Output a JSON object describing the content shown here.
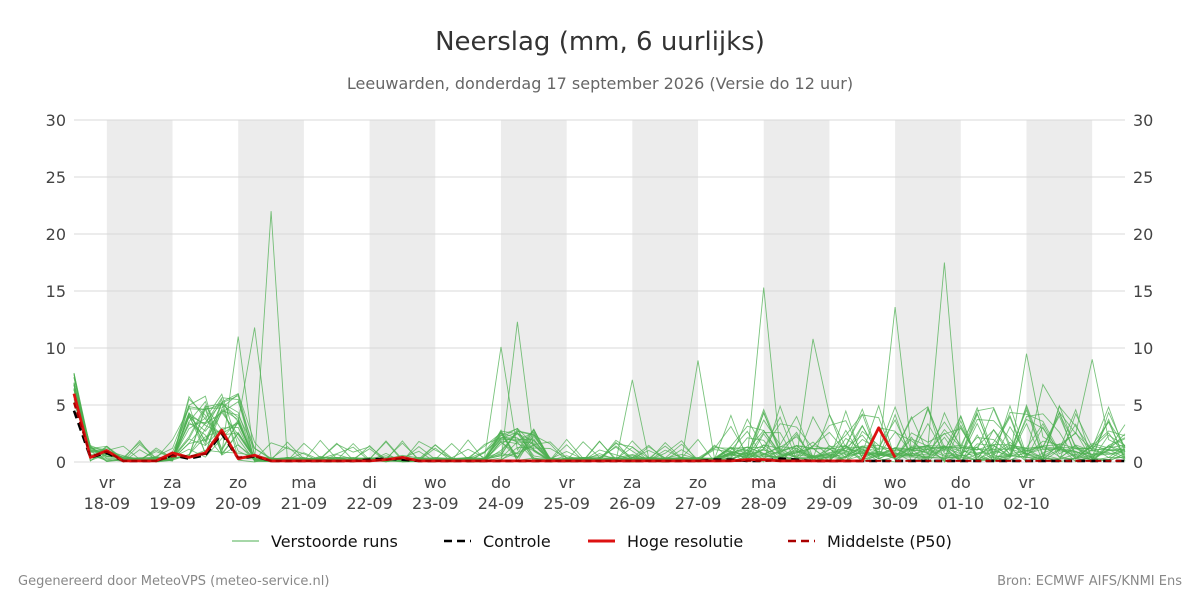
{
  "header": {
    "title": "Neerslag (mm, 6 uurlijks)",
    "subtitle": "Leeuwarden, donderdag 17 september 2026 (Versie do 12 uur)"
  },
  "footer": {
    "left": "Gegenereerd door MeteoVPS (meteo-service.nl)",
    "right": "Bron: ECMWF AIFS/KNMI Ens"
  },
  "legend": [
    {
      "label": "Verstoorde runs",
      "color": "#4caf50",
      "style": "thin-solid"
    },
    {
      "label": "Controle",
      "color": "#000000",
      "style": "dashed"
    },
    {
      "label": "Hoge resolutie",
      "color": "#dd1111",
      "style": "solid"
    },
    {
      "label": "Middelste (P50)",
      "color": "#aa0000",
      "style": "dashed"
    }
  ],
  "chart_data": {
    "type": "line",
    "unit": "mm",
    "ylim": [
      0,
      30
    ],
    "yticks": [
      0,
      5,
      10,
      15,
      20,
      25,
      30
    ],
    "grid": true,
    "legend_position": "bottom",
    "x_start": "17-09 12:00",
    "x_step_hours": 6,
    "x_end": "03-10 12:00",
    "x_ticks": [
      {
        "day": "vr",
        "date": "18-09"
      },
      {
        "day": "za",
        "date": "19-09"
      },
      {
        "day": "zo",
        "date": "20-09"
      },
      {
        "day": "ma",
        "date": "21-09"
      },
      {
        "day": "di",
        "date": "22-09"
      },
      {
        "day": "wo",
        "date": "23-09"
      },
      {
        "day": "do",
        "date": "24-09"
      },
      {
        "day": "vr",
        "date": "25-09"
      },
      {
        "day": "za",
        "date": "26-09"
      },
      {
        "day": "zo",
        "date": "27-09"
      },
      {
        "day": "ma",
        "date": "28-09"
      },
      {
        "day": "di",
        "date": "29-09"
      },
      {
        "day": "wo",
        "date": "30-09"
      },
      {
        "day": "do",
        "date": "01-10"
      },
      {
        "day": "vr",
        "date": "02-10"
      }
    ],
    "shaded_days": [
      "18-09",
      "20-09",
      "22-09",
      "24-09",
      "26-09",
      "28-09",
      "30-09",
      "02-10"
    ],
    "series": [
      {
        "name": "Verstoorde runs",
        "ensemble": true,
        "color": "#4caf50",
        "member_peaks": [
          {
            "at": "20-09 12:00",
            "value": 22.0
          },
          {
            "at": "20-09 00:00",
            "value": 11.0
          },
          {
            "at": "20-09 06:00",
            "value": 11.8
          },
          {
            "at": "24-09 00:00",
            "value": 10.1
          },
          {
            "at": "24-09 06:00",
            "value": 12.3
          },
          {
            "at": "26-09 00:00",
            "value": 7.2
          },
          {
            "at": "27-09 00:00",
            "value": 8.9
          },
          {
            "at": "28-09 00:00",
            "value": 15.3
          },
          {
            "at": "28-09 18:00",
            "value": 10.8
          },
          {
            "at": "30-09 00:00",
            "value": 13.6
          },
          {
            "at": "30-09 18:00",
            "value": 17.5
          },
          {
            "at": "02-10 00:00",
            "value": 9.5
          },
          {
            "at": "02-10 06:00",
            "value": 6.8
          },
          {
            "at": "03-10 00:00",
            "value": 9.0
          }
        ]
      },
      {
        "name": "Controle",
        "color": "#000000",
        "values": [
          4.5,
          0.4,
          0.8,
          0.1,
          0.1,
          0.1,
          0.6,
          0.3,
          0.6,
          2.5,
          0.3,
          0.5,
          0.1,
          0.1,
          0.1,
          0.1,
          0.1,
          0.1,
          0.2,
          0.3,
          0.2,
          0.1,
          0.1,
          0.1,
          0.1,
          0.1,
          0.1,
          0.1,
          0.1,
          0.1,
          0.1,
          0.1,
          0.1,
          0.1,
          0.1,
          0.1,
          0.1,
          0.1,
          0.1,
          0.2,
          0.2,
          0.1,
          0.1,
          0.3,
          0.2,
          0.1,
          0.1,
          0.1,
          0.1,
          0.1,
          0.1,
          0.1,
          0.1,
          0.1,
          0.1,
          0.1,
          0.1,
          0.1,
          0.1,
          0.1,
          0.1,
          0.1,
          0.1,
          0.1,
          0.1
        ]
      },
      {
        "name": "Hoge resolutie",
        "color": "#dd1111",
        "values": [
          6.0,
          0.4,
          1.0,
          0.1,
          0.1,
          0.1,
          0.8,
          0.4,
          0.8,
          2.8,
          0.3,
          0.6,
          0.1,
          0.1,
          0.1,
          0.1,
          0.1,
          0.1,
          0.1,
          0.2,
          0.4,
          0.1,
          0.1,
          0.1,
          0.1,
          0.1,
          0.1,
          0.1,
          0.1,
          0.1,
          0.1,
          0.1,
          0.1,
          0.1,
          0.1,
          0.1,
          0.1,
          0.1,
          0.1,
          0.1,
          0.1,
          0.2,
          0.2,
          0.1,
          0.1,
          0.1,
          0.1,
          0.1,
          0.1,
          3.0,
          0.4
        ]
      },
      {
        "name": "Middelste (P50)",
        "color": "#aa0000",
        "values": [
          5.2,
          0.5,
          0.9,
          0.1,
          0.1,
          0.1,
          0.5,
          0.5,
          0.7,
          2.6,
          0.4,
          0.5,
          0.1,
          0.1,
          0.1,
          0.1,
          0.1,
          0.1,
          0.1,
          0.2,
          0.3,
          0.1,
          0.1,
          0.1,
          0.1,
          0.1,
          0.1,
          0.1,
          0.1,
          0.1,
          0.1,
          0.1,
          0.1,
          0.1,
          0.1,
          0.1,
          0.1,
          0.1,
          0.1,
          0.1,
          0.1,
          0.1,
          0.1,
          0.1,
          0.1,
          0.1,
          0.1,
          0.1,
          0.1,
          0.1,
          0.1,
          0.1,
          0.1,
          0.1,
          0.1,
          0.1,
          0.1,
          0.1,
          0.1,
          0.1,
          0.1,
          0.1,
          0.1,
          0.1,
          0.1
        ]
      }
    ]
  }
}
